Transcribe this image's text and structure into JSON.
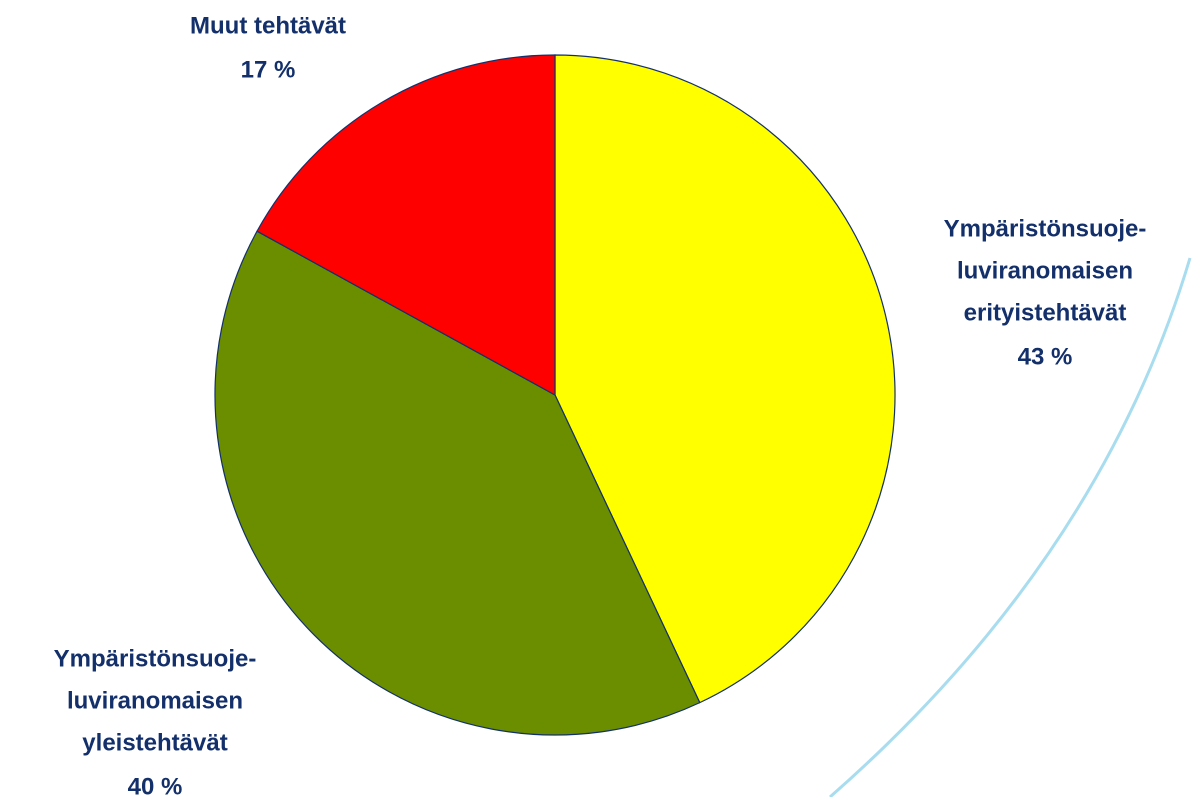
{
  "chart_data": {
    "type": "pie",
    "categories": [
      [
        "Ympäristönsuoje-",
        "luviranomaisen",
        "erityistehtävät"
      ],
      [
        "Ympäristönsuoje-",
        "luviranomaisen",
        "yleistehtävät"
      ],
      [
        "Muut tehtävät"
      ]
    ],
    "values": [
      43,
      40,
      17
    ],
    "value_labels": [
      "43 %",
      "40 %",
      "17 %"
    ],
    "colors": [
      "#ffff00",
      "#6b8e00",
      "#ff0000"
    ]
  }
}
